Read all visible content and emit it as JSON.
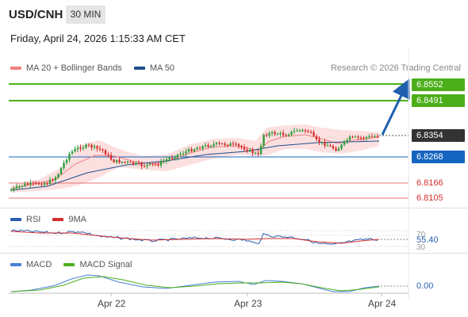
{
  "header": {
    "symbol": "USD/CNH",
    "timeframe": "30 MIN",
    "datetime": "Friday, April 24, 2026 1:15:33 AM CET"
  },
  "main_legend": {
    "ma20": {
      "label": "MA 20 + Bollinger Bands",
      "color": "#f08080"
    },
    "ma50": {
      "label": "MA 50",
      "color": "#1f4e8c"
    }
  },
  "credit": "Research © 2026 Trading Central",
  "price_levels": {
    "resistance_2": {
      "label": "6.8552",
      "color": "#4caf1a"
    },
    "resistance_1": {
      "label": "6.8491",
      "color": "#4caf1a"
    },
    "last": {
      "label": "6.8354",
      "color": "#333333"
    },
    "pivot": {
      "label": "6.8268",
      "color": "#1565c0"
    },
    "support_1": {
      "label": "6.8166",
      "color": "#e57373"
    },
    "support_2": {
      "label": "6.8105",
      "color": "#e57373"
    }
  },
  "rsi_panel": {
    "legend": {
      "rsi": "RSI",
      "ma": "9MA"
    },
    "levels": {
      "upper": "70",
      "lower": "30"
    },
    "value": "55.40",
    "colors": {
      "rsi": "#2a5db0",
      "ma": "#d32f2f"
    }
  },
  "macd_panel": {
    "legend": {
      "macd": "MACD",
      "signal": "MACD Signal"
    },
    "value": "0.00",
    "colors": {
      "macd": "#4a7fd4",
      "signal": "#4caf1a"
    }
  },
  "x_axis": {
    "labels": [
      "Apr 22",
      "Apr 23",
      "Apr 24"
    ]
  },
  "colors": {
    "candle_up": "#2e9d3a",
    "candle_down": "#d32f2f",
    "arrow": "#1f5fae",
    "band_fill": "#fbd6d6"
  }
}
